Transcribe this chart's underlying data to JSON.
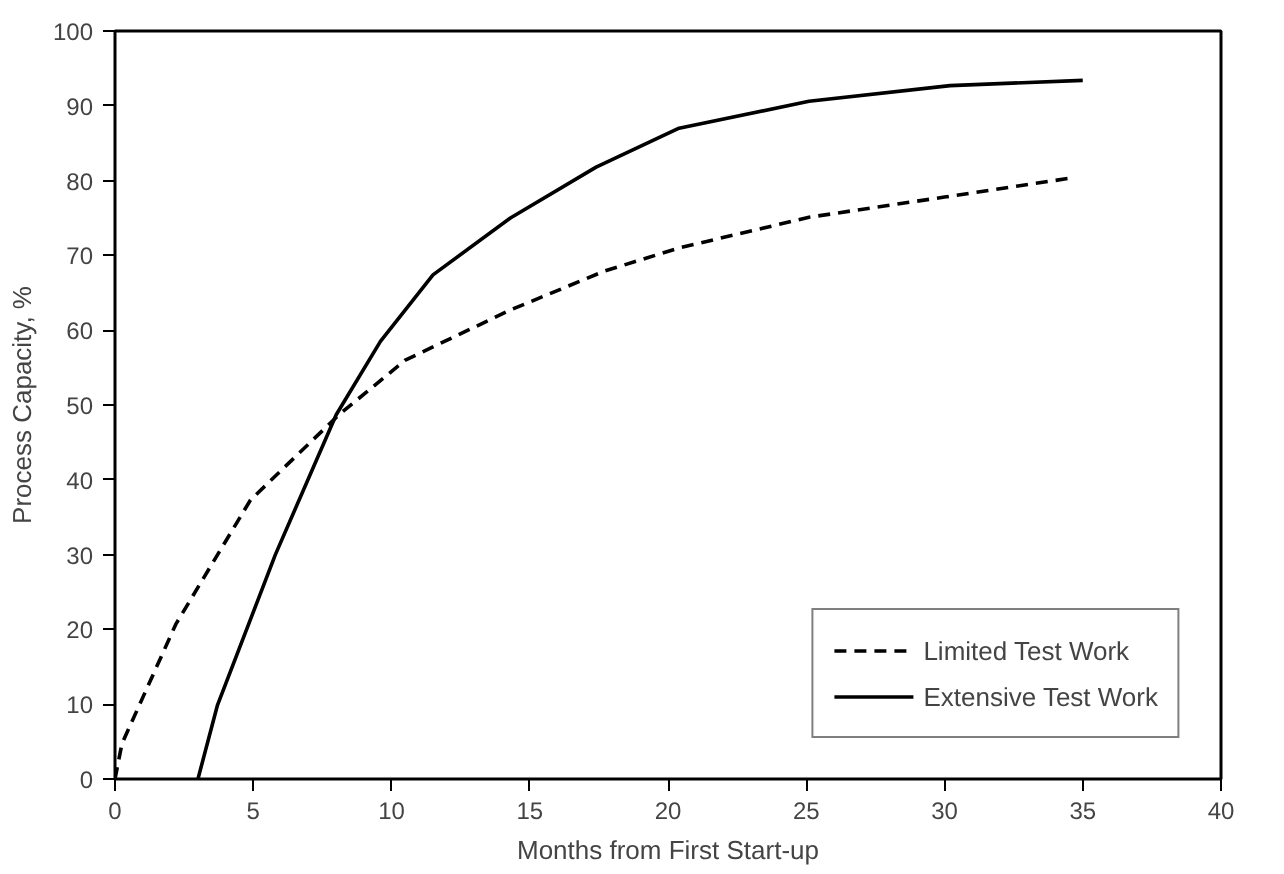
{
  "chart_data": {
    "type": "line",
    "xlabel": "Months from First Start-up",
    "ylabel": "Process Capacity, %",
    "xlim": [
      0,
      40
    ],
    "ylim": [
      0,
      100
    ],
    "xticks": [
      0,
      5,
      10,
      15,
      20,
      25,
      30,
      35,
      40
    ],
    "yticks": [
      0,
      10,
      20,
      30,
      40,
      50,
      60,
      70,
      80,
      90,
      100
    ],
    "grid": false,
    "legend": "bottom right",
    "series": [
      {
        "name": "Limited Test Work",
        "color": "#000000",
        "line_style": "dashed",
        "x": [
          0,
          0.25,
          2.2,
          4.9,
          8.1,
          10.5,
          14.3,
          17.7,
          20.4,
          25.1,
          30,
          34.5
        ],
        "values": [
          0,
          4.7,
          20.7,
          37.3,
          48.7,
          56,
          62.7,
          67.9,
          71,
          75.1,
          77.8,
          80.3
        ]
      },
      {
        "name": "Extensive Test Work",
        "color": "#000000",
        "line_style": "solid",
        "x": [
          3,
          3.7,
          5.8,
          8,
          9.6,
          11.5,
          14.3,
          17.4,
          20.4,
          25.1,
          30.2,
          35
        ],
        "values": [
          0,
          9.8,
          30,
          48.7,
          58.5,
          67.4,
          75,
          81.8,
          87,
          90.6,
          92.7,
          93.4
        ]
      }
    ]
  }
}
